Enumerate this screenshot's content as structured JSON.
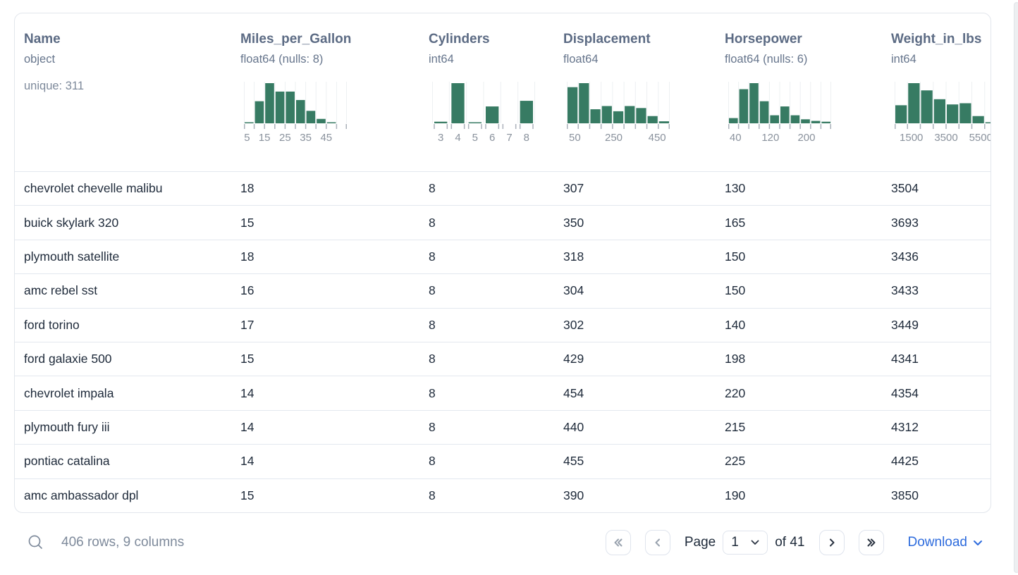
{
  "card": {
    "columns": [
      {
        "name": "Name",
        "dtype": "object",
        "unique": "unique: 311"
      },
      {
        "name": "Miles_per_Gallon",
        "dtype": "float64 (nulls: 8)",
        "histogram": {
          "type": "bar",
          "bins": [
            2,
            55,
            100,
            79,
            79,
            58,
            31,
            11,
            2,
            0
          ],
          "labels": [
            [
              "5",
              0.3
            ],
            [
              "15",
              2
            ],
            [
              "25",
              4
            ],
            [
              "35",
              6
            ],
            [
              "45",
              8
            ]
          ],
          "tick_style": "boundary",
          "color": "#377b63"
        }
      },
      {
        "name": "Cylinders",
        "dtype": "int64",
        "histogram": {
          "type": "bar",
          "bins": [
            4,
            100,
            2,
            42,
            0,
            56
          ],
          "labels": [
            [
              "3",
              0.5
            ],
            [
              "4",
              1.5
            ],
            [
              "5",
              2.5
            ],
            [
              "6",
              3.5
            ],
            [
              "7",
              4.5
            ],
            [
              "8",
              5.5
            ]
          ],
          "tick_style": "paired",
          "color": "#377b63"
        }
      },
      {
        "name": "Displacement",
        "dtype": "float64",
        "histogram": {
          "type": "bar",
          "bins": [
            90,
            100,
            35,
            43,
            30,
            43,
            38,
            18,
            5
          ],
          "labels": [
            [
              "50",
              0.7
            ],
            [
              "250",
              4.1
            ],
            [
              "450",
              7.9
            ]
          ],
          "tick_style": "boundary",
          "color": "#377b63"
        }
      },
      {
        "name": "Horsepower",
        "dtype": "float64 (nulls: 6)",
        "histogram": {
          "type": "bar",
          "bins": [
            13,
            85,
            100,
            55,
            20,
            42,
            20,
            10,
            6,
            4
          ],
          "labels": [
            [
              "40",
              0.7
            ],
            [
              "120",
              4.1
            ],
            [
              "200",
              7.6
            ]
          ],
          "tick_style": "boundary",
          "color": "#377b63"
        }
      },
      {
        "name": "Weight_in_lbs",
        "dtype": "int64",
        "histogram": {
          "type": "bar",
          "bins": [
            45,
            100,
            82,
            60,
            47,
            50,
            18,
            2
          ],
          "labels": [
            [
              "1500",
              1.3
            ],
            [
              "3500",
              4
            ],
            [
              "5500",
              6.7
            ]
          ],
          "tick_style": "boundary",
          "color": "#377b63"
        }
      }
    ],
    "rows": [
      [
        "chevrolet chevelle malibu",
        "18",
        "8",
        "307",
        "130",
        "3504"
      ],
      [
        "buick skylark 320",
        "15",
        "8",
        "350",
        "165",
        "3693"
      ],
      [
        "plymouth satellite",
        "18",
        "8",
        "318",
        "150",
        "3436"
      ],
      [
        "amc rebel sst",
        "16",
        "8",
        "304",
        "150",
        "3433"
      ],
      [
        "ford torino",
        "17",
        "8",
        "302",
        "140",
        "3449"
      ],
      [
        "ford galaxie 500",
        "15",
        "8",
        "429",
        "198",
        "4341"
      ],
      [
        "chevrolet impala",
        "14",
        "8",
        "454",
        "220",
        "4354"
      ],
      [
        "plymouth fury iii",
        "14",
        "8",
        "440",
        "215",
        "4312"
      ],
      [
        "pontiac catalina",
        "14",
        "8",
        "455",
        "225",
        "4425"
      ],
      [
        "amc ambassador dpl",
        "15",
        "8",
        "390",
        "190",
        "3850"
      ]
    ]
  },
  "footer": {
    "status": "406 rows, 9 columns",
    "page_label": "Page",
    "page_value": "1",
    "of_label": "of 41",
    "download_label": "Download"
  },
  "colors": {
    "histogram_green": "#377b63",
    "link_blue": "#2d6bdd",
    "header_text": "#5c6b84",
    "row_text": "#1e2a3a"
  }
}
